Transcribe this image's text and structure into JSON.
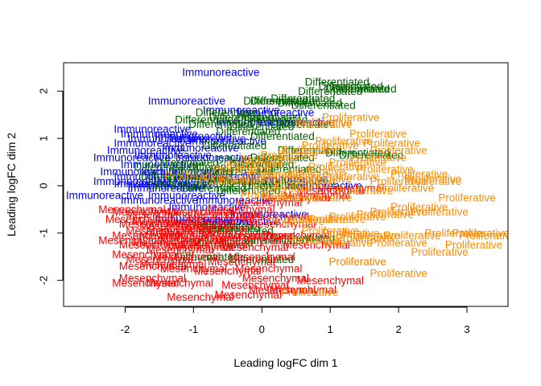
{
  "chart_data": {
    "type": "scatter",
    "title": "",
    "xlabel": "Leading logFC dim 1",
    "ylabel": "Leading logFC dim 2",
    "xlim": [
      -2.9,
      3.6
    ],
    "ylim": [
      -2.55,
      2.6
    ],
    "xticks": [
      -2,
      -1,
      0,
      1,
      2,
      3
    ],
    "yticks": [
      -2,
      -1,
      0,
      1,
      2
    ],
    "marker": "text-label",
    "grid": false,
    "legend": "none",
    "colors": {
      "Immunoreactive": "#0000ff",
      "Differentiated": "#006400",
      "Mesenchymal": "#ff0000",
      "Proliferative": "#ff8c00"
    },
    "series": [
      {
        "label": "Immunoreactive",
        "points": [
          [
            -0.6,
            2.4
          ],
          [
            -1.1,
            1.8
          ],
          [
            -1.6,
            1.2
          ],
          [
            -1.9,
            0.6
          ],
          [
            -2.3,
            -0.2
          ],
          [
            -1.4,
            0.0
          ],
          [
            -1.5,
            1.1
          ],
          [
            -1.4,
            1.0
          ],
          [
            -1.6,
            0.9
          ],
          [
            -1.7,
            0.75
          ],
          [
            -1.3,
            0.65
          ],
          [
            -1.5,
            0.45
          ],
          [
            -1.8,
            0.3
          ],
          [
            -1.6,
            0.2
          ],
          [
            -1.9,
            0.1
          ],
          [
            -1.2,
            0.05
          ],
          [
            -1.0,
            1.05
          ],
          [
            -0.8,
            1.0
          ],
          [
            -0.5,
            0.95
          ],
          [
            -0.9,
            0.8
          ],
          [
            -0.7,
            0.6
          ],
          [
            -1.2,
            0.3
          ],
          [
            -1.1,
            0.15
          ],
          [
            -0.6,
            0.2
          ],
          [
            -1.6,
            0.05
          ],
          [
            -1.4,
            -0.05
          ],
          [
            -1.1,
            -0.2
          ],
          [
            -0.4,
            -0.3
          ],
          [
            -0.8,
            -0.45
          ],
          [
            -1.5,
            -0.3
          ],
          [
            -0.3,
            1.6
          ],
          [
            -0.1,
            1.35
          ],
          [
            0.2,
            1.55
          ],
          [
            0.5,
            1.35
          ],
          [
            -1.0,
            -0.7
          ],
          [
            -0.7,
            -0.75
          ],
          [
            0.1,
            -0.6
          ],
          [
            -0.3,
            -0.75
          ],
          [
            0.9,
            0.0
          ],
          [
            0.4,
            0.15
          ]
        ]
      },
      {
        "label": "Differentiated",
        "points": [
          [
            1.1,
            2.2
          ],
          [
            1.3,
            2.1
          ],
          [
            1.4,
            2.05
          ],
          [
            1.0,
            2.0
          ],
          [
            1.5,
            2.05
          ],
          [
            0.6,
            1.85
          ],
          [
            0.3,
            1.8
          ],
          [
            0.7,
            1.75
          ],
          [
            0.9,
            1.7
          ],
          [
            -0.5,
            1.55
          ],
          [
            -0.3,
            1.45
          ],
          [
            0.1,
            1.45
          ],
          [
            0.2,
            1.4
          ],
          [
            0.6,
            1.3
          ],
          [
            0.0,
            1.25
          ],
          [
            -0.8,
            1.4
          ],
          [
            -0.6,
            1.3
          ],
          [
            -0.2,
            1.15
          ],
          [
            0.3,
            1.05
          ],
          [
            1.4,
            0.7
          ],
          [
            1.6,
            0.65
          ],
          [
            0.7,
            0.75
          ],
          [
            0.3,
            0.6
          ],
          [
            -0.4,
            0.85
          ],
          [
            -0.2,
            0.55
          ],
          [
            -0.6,
            0.4
          ],
          [
            -1.1,
            0.5
          ],
          [
            -0.9,
            0.3
          ],
          [
            -1.3,
            0.2
          ],
          [
            -0.3,
            0.3
          ],
          [
            -1.2,
            0.0
          ],
          [
            -0.7,
            -0.05
          ],
          [
            -0.2,
            -0.1
          ],
          [
            0.2,
            0.0
          ],
          [
            0.6,
            0.1
          ],
          [
            -0.9,
            0.15
          ],
          [
            -0.4,
            0.1
          ],
          [
            -0.6,
            -0.85
          ],
          [
            -0.5,
            -0.9
          ],
          [
            -0.3,
            -0.95
          ],
          [
            -0.6,
            -1.2
          ],
          [
            0.2,
            -1.15
          ],
          [
            0.6,
            -1.1
          ],
          [
            -0.8,
            -1.5
          ],
          [
            0.0,
            -1.55
          ],
          [
            0.2,
            1.8
          ],
          [
            -0.2,
            0.05
          ],
          [
            0.0,
            0.45
          ],
          [
            0.4,
            0.35
          ],
          [
            -1.4,
            0.4
          ]
        ]
      },
      {
        "label": "Mesenchymal",
        "points": [
          [
            -1.9,
            -0.5
          ],
          [
            -1.7,
            -0.55
          ],
          [
            -1.5,
            -0.6
          ],
          [
            -1.8,
            -0.7
          ],
          [
            -1.6,
            -0.8
          ],
          [
            -1.4,
            -0.75
          ],
          [
            -1.3,
            -0.85
          ],
          [
            -1.2,
            -0.95
          ],
          [
            -1.5,
            -0.95
          ],
          [
            -1.7,
            -1.05
          ],
          [
            -1.9,
            -1.15
          ],
          [
            -1.6,
            -1.25
          ],
          [
            -1.4,
            -1.2
          ],
          [
            -1.2,
            -1.35
          ],
          [
            -1.7,
            -1.45
          ],
          [
            -1.5,
            -1.55
          ],
          [
            -1.3,
            -1.65
          ],
          [
            -1.6,
            -1.7
          ],
          [
            -1.0,
            -1.75
          ],
          [
            -1.1,
            -1.5
          ],
          [
            -0.9,
            -1.3
          ],
          [
            -0.8,
            -1.1
          ],
          [
            -1.0,
            -1.0
          ],
          [
            -0.7,
            -0.9
          ],
          [
            -0.6,
            -0.7
          ],
          [
            -0.5,
            -0.6
          ],
          [
            -0.9,
            -0.55
          ],
          [
            -0.4,
            -1.05
          ],
          [
            -0.2,
            -1.15
          ],
          [
            -0.1,
            -1.3
          ],
          [
            0.0,
            -1.5
          ],
          [
            -0.3,
            -1.6
          ],
          [
            -0.5,
            -1.8
          ],
          [
            0.1,
            -1.75
          ],
          [
            0.2,
            -1.95
          ],
          [
            -0.1,
            -2.1
          ],
          [
            0.3,
            -2.2
          ],
          [
            -0.2,
            -2.3
          ],
          [
            -0.9,
            -2.35
          ],
          [
            -1.6,
            -1.95
          ],
          [
            -1.7,
            -2.05
          ],
          [
            -1.2,
            -2.05
          ],
          [
            1.0,
            -2.0
          ],
          [
            0.6,
            -2.2
          ],
          [
            0.3,
            -0.8
          ],
          [
            0.5,
            -1.05
          ],
          [
            0.8,
            -1.25
          ],
          [
            0.2,
            -0.65
          ],
          [
            -0.9,
            -0.8
          ],
          [
            -0.3,
            -0.5
          ],
          [
            0.1,
            -0.35
          ],
          [
            0.5,
            -0.25
          ],
          [
            0.8,
            -0.2
          ],
          [
            1.0,
            -0.1
          ],
          [
            1.3,
            -0.05
          ],
          [
            0.0,
            -1.05
          ],
          [
            -0.7,
            -1.25
          ],
          [
            -1.0,
            -1.15
          ],
          [
            -1.3,
            -1.05
          ]
        ]
      },
      {
        "label": "Proliferative",
        "points": [
          [
            1.3,
            1.45
          ],
          [
            0.9,
            1.35
          ],
          [
            0.9,
            1.3
          ],
          [
            1.7,
            1.1
          ],
          [
            1.9,
            0.9
          ],
          [
            1.2,
            0.95
          ],
          [
            1.0,
            0.85
          ],
          [
            0.7,
            0.75
          ],
          [
            0.4,
            0.65
          ],
          [
            0.1,
            0.55
          ],
          [
            -0.1,
            0.45
          ],
          [
            -0.3,
            0.35
          ],
          [
            0.2,
            0.25
          ],
          [
            0.5,
            0.2
          ],
          [
            0.8,
            0.3
          ],
          [
            1.1,
            0.4
          ],
          [
            1.4,
            0.5
          ],
          [
            1.7,
            0.6
          ],
          [
            2.0,
            0.75
          ],
          [
            2.3,
            0.25
          ],
          [
            2.5,
            0.15
          ],
          [
            2.0,
            0.1
          ],
          [
            1.8,
            0.35
          ],
          [
            2.5,
            0.1
          ],
          [
            2.1,
            -0.05
          ],
          [
            3.0,
            -0.25
          ],
          [
            2.3,
            -0.45
          ],
          [
            2.0,
            -0.55
          ],
          [
            2.6,
            -0.55
          ],
          [
            1.8,
            -0.6
          ],
          [
            1.4,
            -0.65
          ],
          [
            1.1,
            -0.7
          ],
          [
            0.8,
            -0.7
          ],
          [
            0.5,
            -0.75
          ],
          [
            1.0,
            -0.95
          ],
          [
            1.3,
            -1.0
          ],
          [
            1.6,
            -1.05
          ],
          [
            2.2,
            -1.05
          ],
          [
            1.5,
            -1.1
          ],
          [
            1.2,
            -1.2
          ],
          [
            0.8,
            -1.15
          ],
          [
            3.2,
            -1.0
          ],
          [
            2.8,
            -1.0
          ],
          [
            3.3,
            -1.05
          ],
          [
            3.1,
            -1.25
          ],
          [
            2.6,
            -1.4
          ],
          [
            2.0,
            -1.2
          ],
          [
            1.4,
            -1.6
          ],
          [
            1.4,
            -1.6
          ],
          [
            2.0,
            -1.85
          ],
          [
            0.7,
            -2.25
          ],
          [
            0.4,
            -0.25
          ],
          [
            0.1,
            -0.2
          ],
          [
            -0.2,
            0.15
          ],
          [
            -0.5,
            0.1
          ],
          [
            -1.0,
            0.2
          ],
          [
            0.3,
            -0.05
          ],
          [
            0.6,
            0.05
          ],
          [
            0.9,
            0.15
          ],
          [
            1.3,
            0.2
          ],
          [
            1.5,
            -0.1
          ],
          [
            0.9,
            -0.25
          ]
        ]
      }
    ]
  }
}
